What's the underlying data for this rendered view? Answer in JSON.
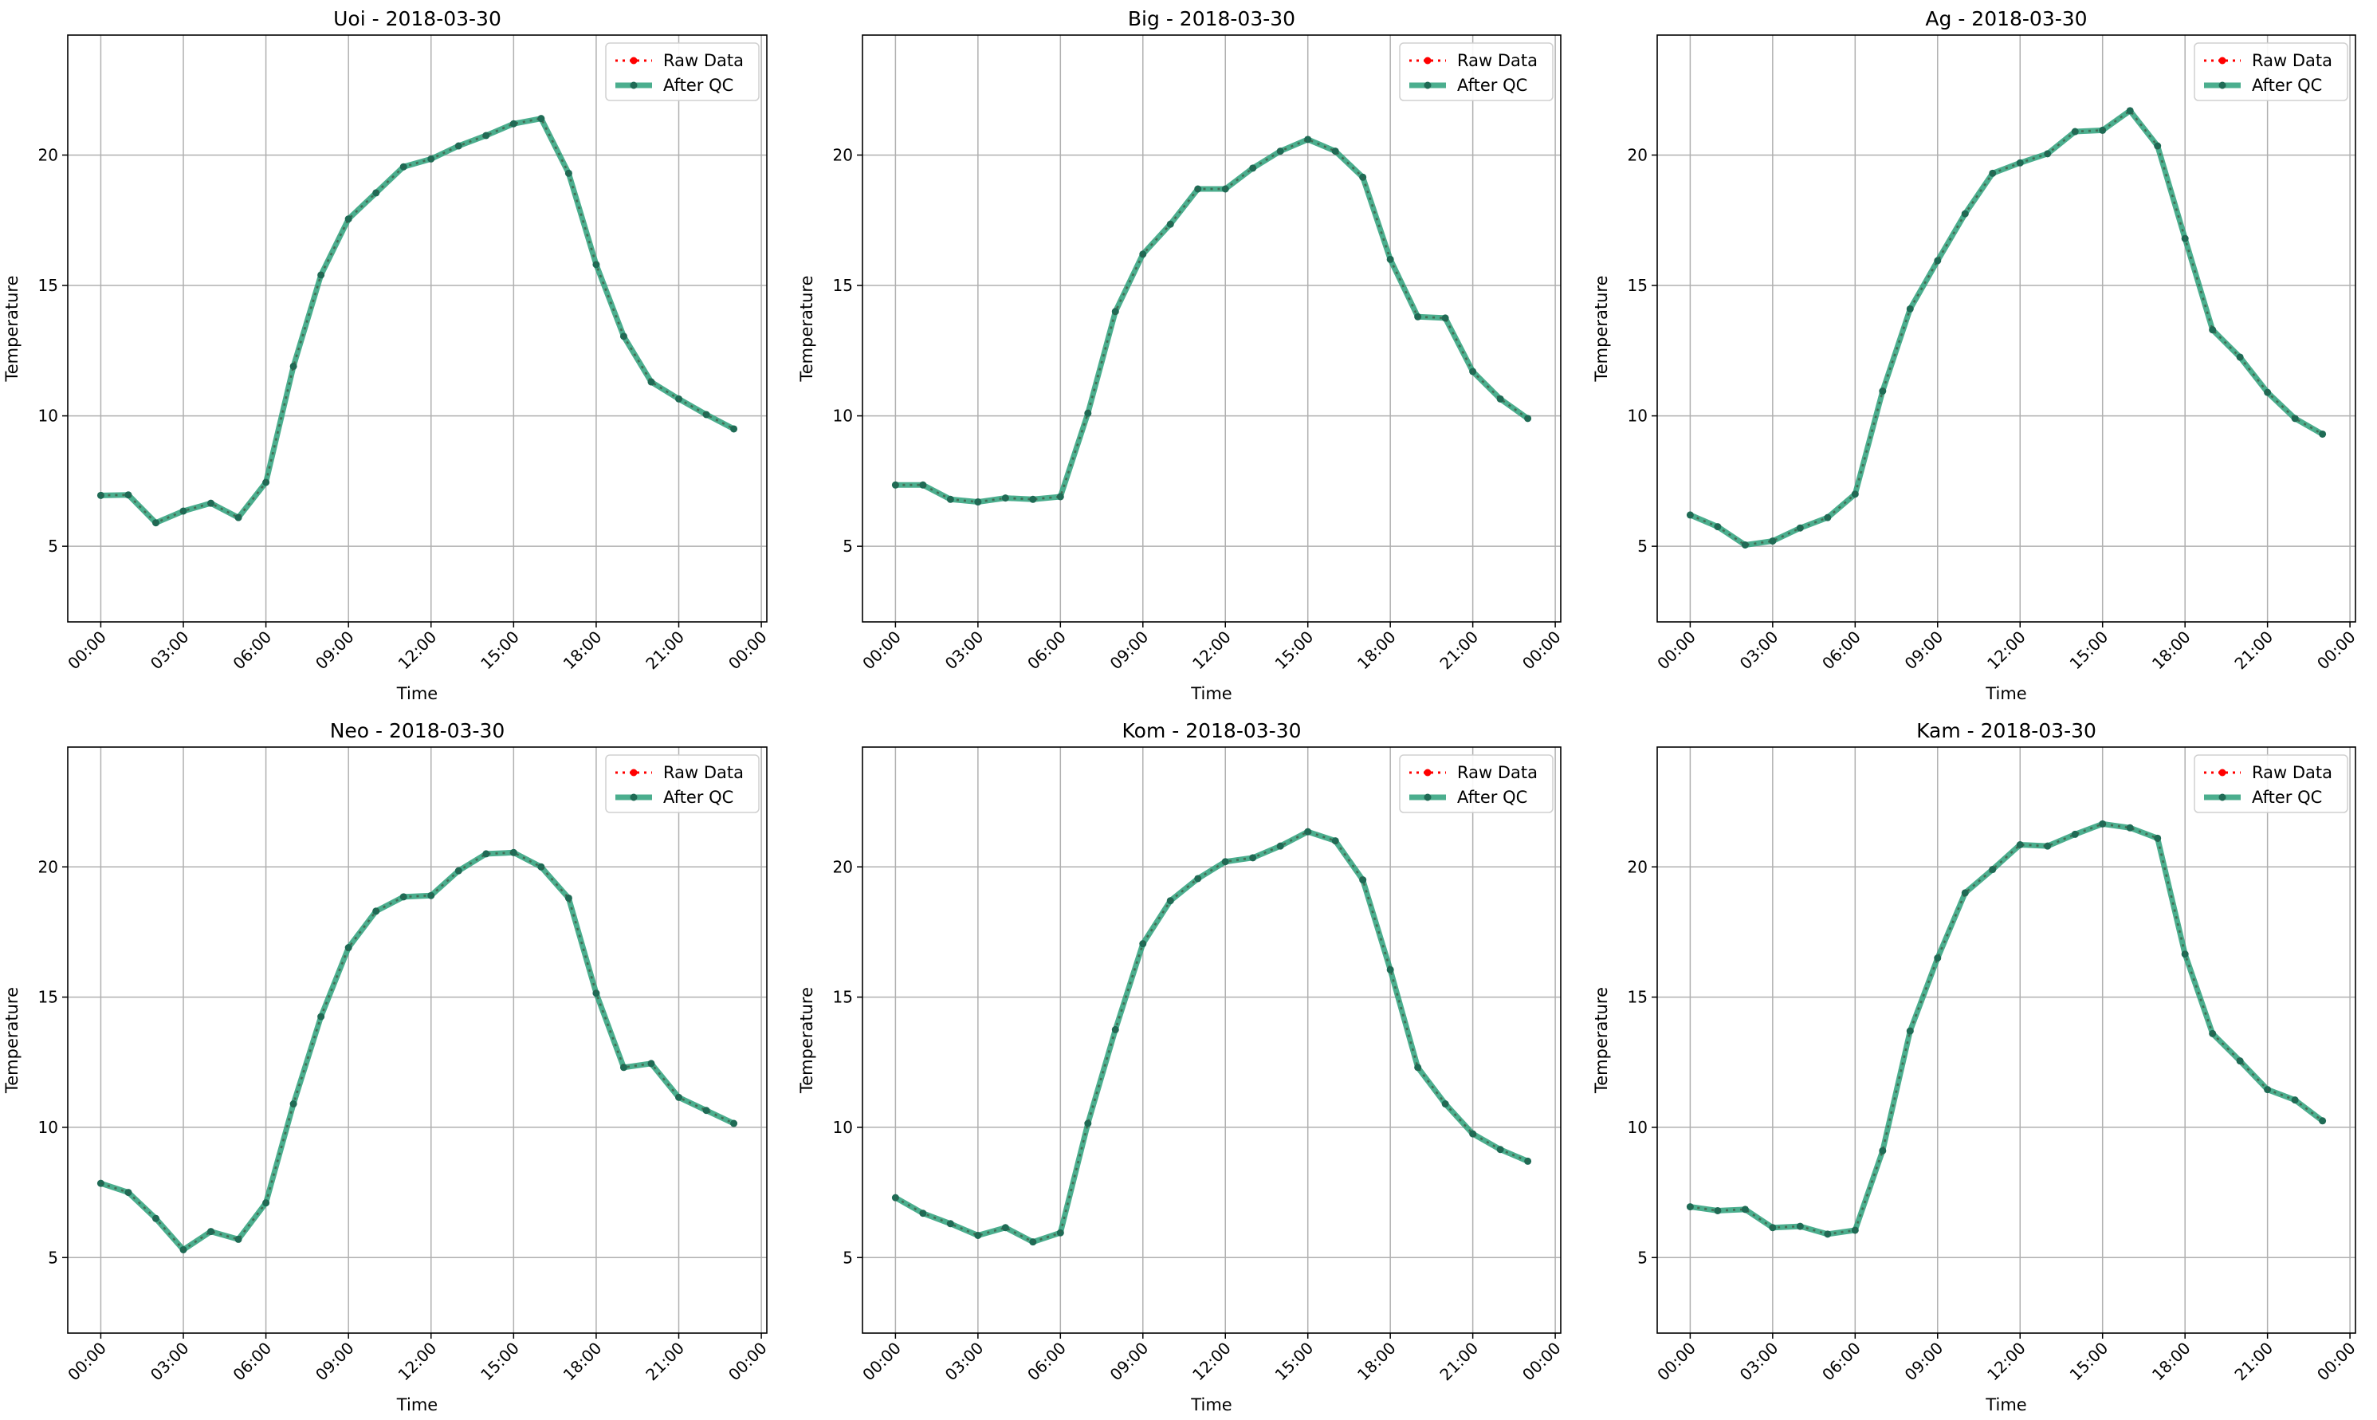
{
  "figure": {
    "xlabel": "Time",
    "ylabel": "Temperature",
    "x_tick_labels": [
      "00:00",
      "03:00",
      "06:00",
      "09:00",
      "12:00",
      "15:00",
      "18:00",
      "21:00",
      "00:00"
    ],
    "y_tick_labels": [
      "5",
      "10",
      "15",
      "20"
    ],
    "legend_labels": [
      "Raw Data",
      "After QC"
    ],
    "colors": {
      "raw": "#ff0000",
      "qc": "#2ca07a",
      "qc_marker": "#1f6b55",
      "grid": "#b0b0b0"
    }
  },
  "chart_data": [
    {
      "type": "line",
      "title": "Uoi - 2018-03-30",
      "xlabel": "Time",
      "ylabel": "Temperature",
      "x_hours": [
        0,
        1,
        2,
        3,
        4,
        5,
        6,
        7,
        8,
        9,
        10,
        11,
        12,
        13,
        14,
        15,
        16,
        17,
        18,
        19,
        20,
        21,
        22,
        23
      ],
      "xlim_hours": [
        -1.2,
        24.2
      ],
      "ylim": [
        2.1,
        24.6
      ],
      "grid": true,
      "legend": "top-right",
      "series": [
        {
          "name": "Raw Data",
          "values": [
            6.95,
            6.97,
            5.9,
            6.35,
            6.65,
            6.1,
            7.45,
            11.9,
            15.4,
            17.55,
            18.55,
            19.55,
            19.85,
            20.35,
            20.75,
            21.2,
            21.4,
            19.3,
            15.8,
            13.05,
            11.3,
            10.65,
            10.05,
            9.5
          ]
        },
        {
          "name": "After QC",
          "values": [
            6.95,
            6.97,
            5.9,
            6.35,
            6.65,
            6.1,
            7.45,
            11.9,
            15.4,
            17.55,
            18.55,
            19.55,
            19.85,
            20.35,
            20.75,
            21.2,
            21.4,
            19.3,
            15.8,
            13.05,
            11.3,
            10.65,
            10.05,
            9.5
          ]
        }
      ]
    },
    {
      "type": "line",
      "title": "Big - 2018-03-30",
      "xlabel": "Time",
      "ylabel": "Temperature",
      "x_hours": [
        0,
        1,
        2,
        3,
        4,
        5,
        6,
        7,
        8,
        9,
        10,
        11,
        12,
        13,
        14,
        15,
        16,
        17,
        18,
        19,
        20,
        21,
        22,
        23
      ],
      "xlim_hours": [
        -1.2,
        24.2
      ],
      "ylim": [
        2.1,
        24.6
      ],
      "grid": true,
      "legend": "top-right",
      "series": [
        {
          "name": "Raw Data",
          "values": [
            7.35,
            7.35,
            6.8,
            6.7,
            6.85,
            6.8,
            6.9,
            10.1,
            14.0,
            16.2,
            17.35,
            18.7,
            18.7,
            19.5,
            20.15,
            20.6,
            20.15,
            19.15,
            16.0,
            13.8,
            13.75,
            11.7,
            10.65,
            9.9
          ]
        },
        {
          "name": "After QC",
          "values": [
            7.35,
            7.35,
            6.8,
            6.7,
            6.85,
            6.8,
            6.9,
            10.1,
            14.0,
            16.2,
            17.35,
            18.7,
            18.7,
            19.5,
            20.15,
            20.6,
            20.15,
            19.15,
            16.0,
            13.8,
            13.75,
            11.7,
            10.65,
            9.9
          ]
        }
      ]
    },
    {
      "type": "line",
      "title": "Ag - 2018-03-30",
      "xlabel": "Time",
      "ylabel": "Temperature",
      "x_hours": [
        0,
        1,
        2,
        3,
        4,
        5,
        6,
        7,
        8,
        9,
        10,
        11,
        12,
        13,
        14,
        15,
        16,
        17,
        18,
        19,
        20,
        21,
        22,
        23
      ],
      "xlim_hours": [
        -1.2,
        24.2
      ],
      "ylim": [
        2.1,
        24.6
      ],
      "grid": true,
      "legend": "top-right",
      "series": [
        {
          "name": "Raw Data",
          "values": [
            6.2,
            5.75,
            5.05,
            5.2,
            5.7,
            6.1,
            7.0,
            10.95,
            14.1,
            15.95,
            17.75,
            19.3,
            19.7,
            20.05,
            20.9,
            20.95,
            21.7,
            20.35,
            16.8,
            13.3,
            12.25,
            10.9,
            9.9,
            9.3
          ]
        },
        {
          "name": "After QC",
          "values": [
            6.2,
            5.75,
            5.05,
            5.2,
            5.7,
            6.1,
            7.0,
            10.95,
            14.1,
            15.95,
            17.75,
            19.3,
            19.7,
            20.05,
            20.9,
            20.95,
            21.7,
            20.35,
            16.8,
            13.3,
            12.25,
            10.9,
            9.9,
            9.3
          ]
        }
      ]
    },
    {
      "type": "line",
      "title": "Neo - 2018-03-30",
      "xlabel": "Time",
      "ylabel": "Temperature",
      "x_hours": [
        0,
        1,
        2,
        3,
        4,
        5,
        6,
        7,
        8,
        9,
        10,
        11,
        12,
        13,
        14,
        15,
        16,
        17,
        18,
        19,
        20,
        21,
        22,
        23
      ],
      "xlim_hours": [
        -1.2,
        24.2
      ],
      "ylim": [
        2.1,
        24.6
      ],
      "grid": true,
      "legend": "top-right",
      "series": [
        {
          "name": "Raw Data",
          "values": [
            7.85,
            7.5,
            6.5,
            5.3,
            6.0,
            5.7,
            7.1,
            10.9,
            14.25,
            16.9,
            18.3,
            18.85,
            18.9,
            19.85,
            20.5,
            20.55,
            20.0,
            18.8,
            15.15,
            12.3,
            12.45,
            11.15,
            10.65,
            10.15
          ]
        },
        {
          "name": "After QC",
          "values": [
            7.85,
            7.5,
            6.5,
            5.3,
            6.0,
            5.7,
            7.1,
            10.9,
            14.25,
            16.9,
            18.3,
            18.85,
            18.9,
            19.85,
            20.5,
            20.55,
            20.0,
            18.8,
            15.15,
            12.3,
            12.45,
            11.15,
            10.65,
            10.15
          ]
        }
      ]
    },
    {
      "type": "line",
      "title": "Kom - 2018-03-30",
      "xlabel": "Time",
      "ylabel": "Temperature",
      "x_hours": [
        0,
        1,
        2,
        3,
        4,
        5,
        6,
        7,
        8,
        9,
        10,
        11,
        12,
        13,
        14,
        15,
        16,
        17,
        18,
        19,
        20,
        21,
        22,
        23
      ],
      "xlim_hours": [
        -1.2,
        24.2
      ],
      "ylim": [
        2.1,
        24.6
      ],
      "grid": true,
      "legend": "top-right",
      "series": [
        {
          "name": "Raw Data",
          "values": [
            7.3,
            6.7,
            6.3,
            5.85,
            6.15,
            5.6,
            5.95,
            10.15,
            13.75,
            17.05,
            18.7,
            19.55,
            20.2,
            20.35,
            20.8,
            21.35,
            21.0,
            19.5,
            16.05,
            12.3,
            10.9,
            9.75,
            9.15,
            8.7
          ]
        },
        {
          "name": "After QC",
          "values": [
            7.3,
            6.7,
            6.3,
            5.85,
            6.15,
            5.6,
            5.95,
            10.15,
            13.75,
            17.05,
            18.7,
            19.55,
            20.2,
            20.35,
            20.8,
            21.35,
            21.0,
            19.5,
            16.05,
            12.3,
            10.9,
            9.75,
            9.15,
            8.7
          ]
        }
      ]
    },
    {
      "type": "line",
      "title": "Kam - 2018-03-30",
      "xlabel": "Time",
      "ylabel": "Temperature",
      "x_hours": [
        0,
        1,
        2,
        3,
        4,
        5,
        6,
        7,
        8,
        9,
        10,
        11,
        12,
        13,
        14,
        15,
        16,
        17,
        18,
        19,
        20,
        21,
        22,
        23
      ],
      "xlim_hours": [
        -1.2,
        24.2
      ],
      "ylim": [
        2.1,
        24.6
      ],
      "grid": true,
      "legend": "top-right",
      "series": [
        {
          "name": "Raw Data",
          "values": [
            6.95,
            6.8,
            6.85,
            6.15,
            6.2,
            5.9,
            6.05,
            9.1,
            13.7,
            16.5,
            19.0,
            19.9,
            20.85,
            20.8,
            21.25,
            21.65,
            21.5,
            21.1,
            16.65,
            13.6,
            12.55,
            11.45,
            11.05,
            10.25
          ]
        },
        {
          "name": "After QC",
          "values": [
            6.95,
            6.8,
            6.85,
            6.15,
            6.2,
            5.9,
            6.05,
            9.1,
            13.7,
            16.5,
            19.0,
            19.9,
            20.85,
            20.8,
            21.25,
            21.65,
            21.5,
            21.1,
            16.65,
            13.6,
            12.55,
            11.45,
            11.05,
            10.25
          ]
        }
      ]
    }
  ]
}
